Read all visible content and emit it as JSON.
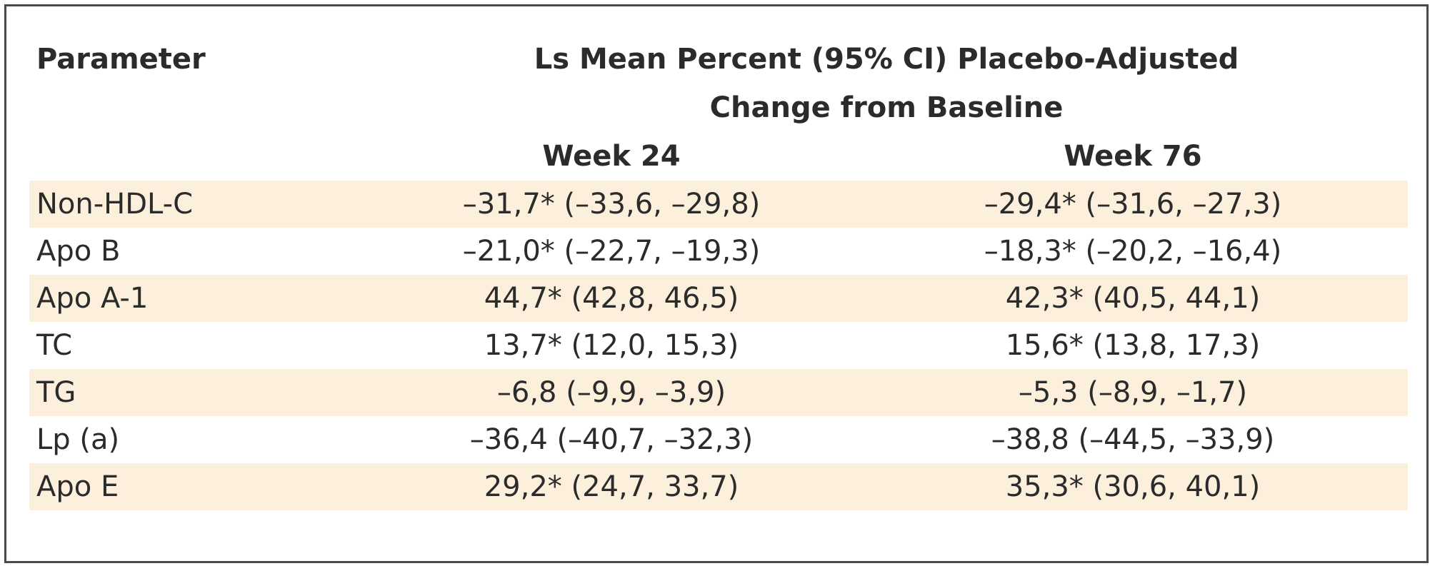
{
  "chart_data": {
    "type": "table",
    "headers": {
      "parameter": "Parameter",
      "group_line1": "Ls Mean Percent (95% CI) Placebo-Adjusted",
      "group_line2": "Change from Baseline",
      "week24": "Week 24",
      "week76": "Week 76"
    },
    "rows": [
      {
        "parameter": "Non-HDL-C",
        "week24": "–31,7* (–33,6, –29,8)",
        "week76": "–29,4* (–31,6, –27,3)",
        "shaded": true
      },
      {
        "parameter": "Apo B",
        "week24": "–21,0* (–22,7, –19,3)",
        "week76": "–18,3* (–20,2, –16,4)",
        "shaded": false
      },
      {
        "parameter": "Apo A-1",
        "week24": "44,7* (42,8, 46,5)",
        "week76": "42,3* (40,5, 44,1)",
        "shaded": true
      },
      {
        "parameter": "TC",
        "week24": "13,7* (12,0, 15,3)",
        "week76": "15,6* (13,8, 17,3)",
        "shaded": false
      },
      {
        "parameter": "TG",
        "week24": "–6,8 (–9,9, –3,9)",
        "week76": "–5,3 (–8,9, –1,7)",
        "shaded": true
      },
      {
        "parameter": "Lp (a)",
        "week24": "–36,4 (–40,7, –32,3)",
        "week76": "–38,8 (–44,5, –33,9)",
        "shaded": false
      },
      {
        "parameter": "Apo E",
        "week24": "29,2* (24,7, 33,7)",
        "week76": "35,3* (30,6, 40,1)",
        "shaded": true
      }
    ],
    "colors": {
      "shaded_row": "#fcefdc",
      "border": "#4a4a4a",
      "text": "#2b2b2b"
    }
  }
}
